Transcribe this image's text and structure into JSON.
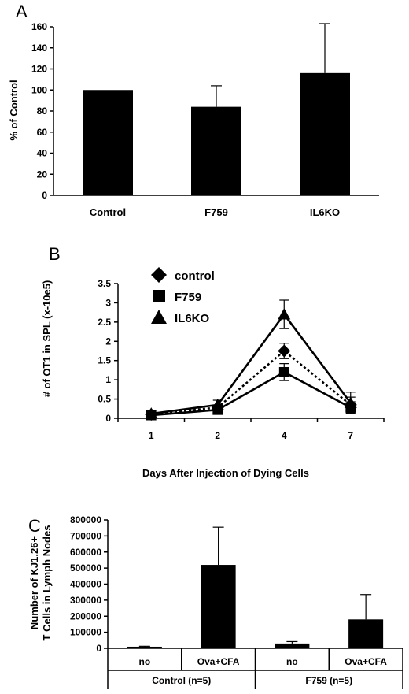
{
  "panels": {
    "a": {
      "letter": "A"
    },
    "b": {
      "letter": "B"
    },
    "c": {
      "letter": "C"
    }
  },
  "chart_data": [
    {
      "type": "bar",
      "panel": "A",
      "title": "",
      "ylabel": "% of Control",
      "xlabel": "",
      "categories": [
        "Control",
        "F759",
        "IL6KO"
      ],
      "values": [
        100,
        84,
        116
      ],
      "errors": [
        0,
        20,
        47
      ],
      "ylim": [
        0,
        160
      ],
      "yticks": [
        "0",
        "20",
        "40",
        "60",
        "80",
        "100",
        "120",
        "140",
        "160"
      ],
      "grid": false,
      "color": "#000000"
    },
    {
      "type": "line",
      "panel": "B",
      "title": "",
      "ylabel": "# of OT1 in SPL (x-10e5)",
      "xlabel": "Days After Injection of Dying Cells",
      "x": [
        "1",
        "2",
        "4",
        "7"
      ],
      "ylim": [
        0,
        3.5
      ],
      "yticks": [
        "0",
        "0.5",
        "1",
        "1.5",
        "2",
        "2.5",
        "3",
        "3.5"
      ],
      "legend_placement": "top-left",
      "series": [
        {
          "name": "control",
          "marker": "diamond",
          "line": "dotted",
          "values": [
            0.1,
            0.28,
            1.75,
            0.35
          ],
          "errors": [
            0.05,
            0.05,
            0.2,
            0.2
          ]
        },
        {
          "name": "F759",
          "marker": "square",
          "line": "solid",
          "values": [
            0.08,
            0.22,
            1.2,
            0.28
          ],
          "errors": [
            0.05,
            0.05,
            0.22,
            0.15
          ]
        },
        {
          "name": "IL6KO",
          "marker": "triangle",
          "line": "solid",
          "values": [
            0.12,
            0.35,
            2.7,
            0.4
          ],
          "errors": [
            0.05,
            0.12,
            0.37,
            0.28
          ]
        }
      ],
      "grid": false
    },
    {
      "type": "bar",
      "panel": "C",
      "title": "",
      "ylabel": "Number of KJ1.26+ T Cells in Lymph Nodes",
      "ylabel_lines": [
        "Number of KJ1.26+",
        "T Cells in Lymph Nodes"
      ],
      "xlabel": "",
      "categories": [
        "no",
        "Ova+CFA",
        "no",
        "Ova+CFA"
      ],
      "groups": [
        {
          "label": "Control (n=5)",
          "categories": [
            "no",
            "Ova+CFA"
          ]
        },
        {
          "label": "F759 (n=5)",
          "categories": [
            "no",
            "Ova+CFA"
          ]
        }
      ],
      "values": [
        10000,
        520000,
        30000,
        180000
      ],
      "errors": [
        3000,
        235000,
        12000,
        155000
      ],
      "ylim": [
        0,
        800000
      ],
      "yticks": [
        "0",
        "100000",
        "200000",
        "300000",
        "400000",
        "500000",
        "600000",
        "700000",
        "800000"
      ],
      "grid": false,
      "color": "#000000"
    }
  ]
}
